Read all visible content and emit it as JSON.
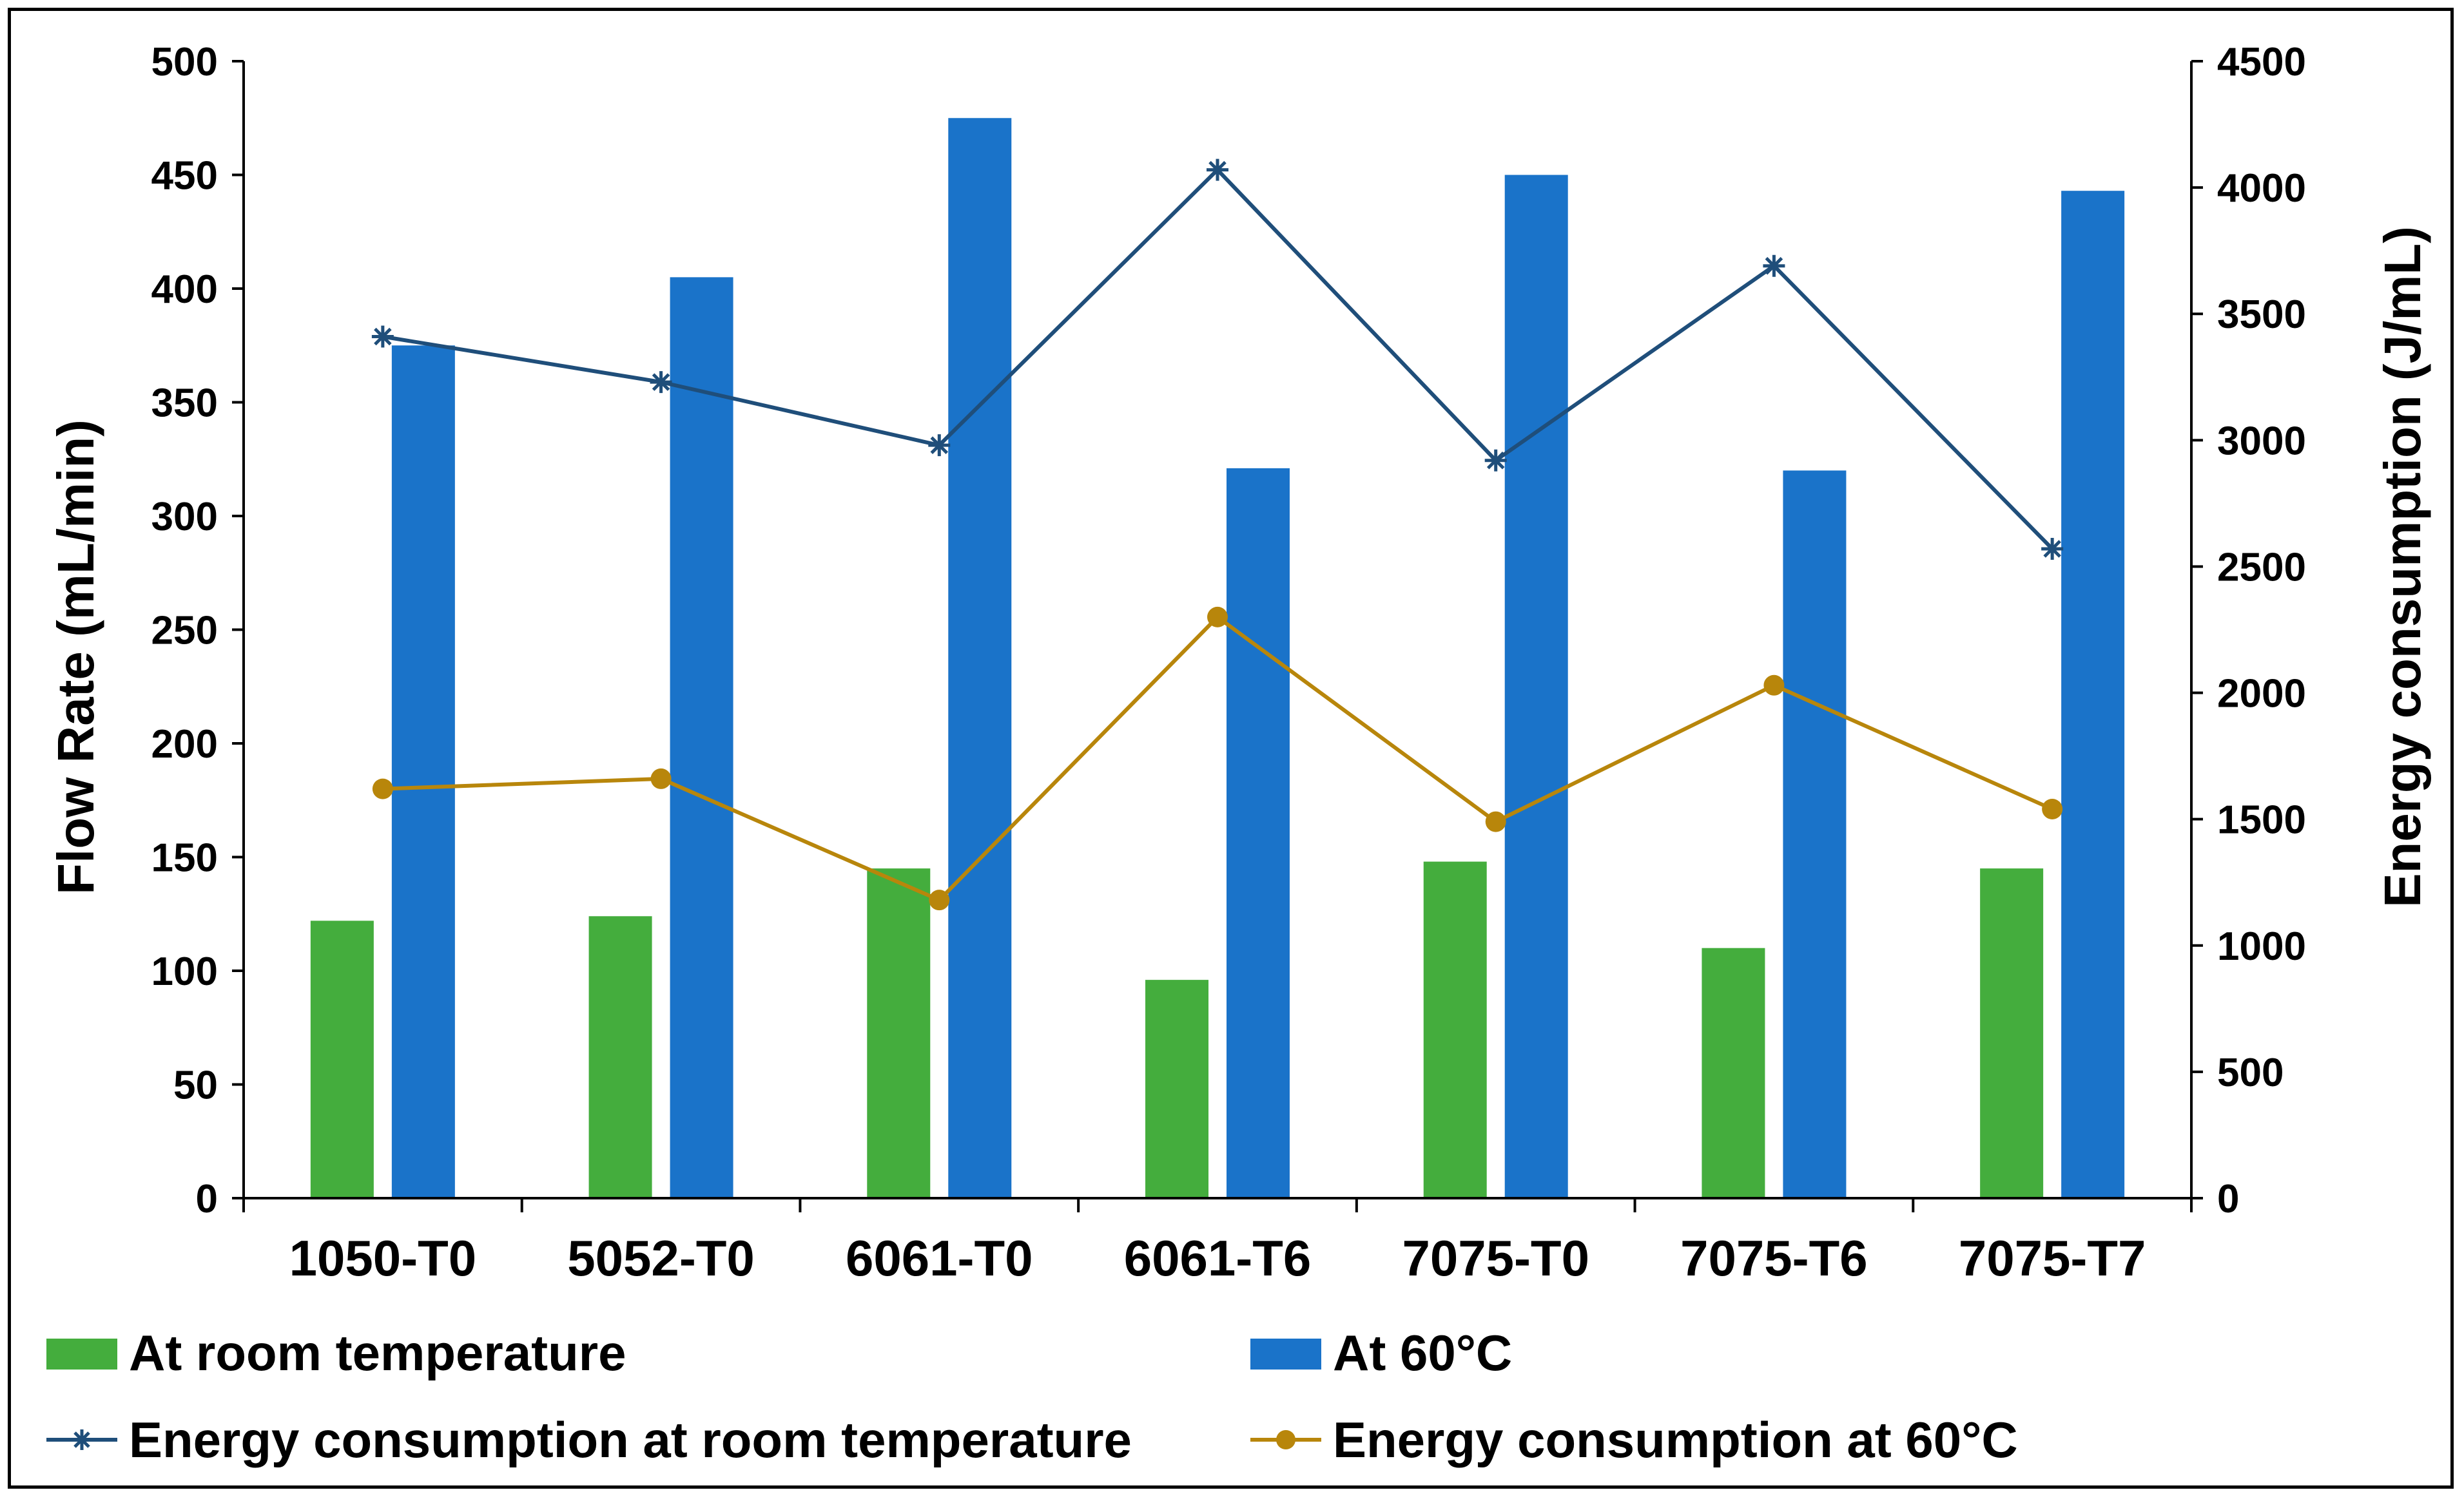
{
  "chart_data": {
    "type": "bar+line",
    "categories": [
      "1050-T0",
      "5052-T0",
      "6061-T0",
      "6061-T6",
      "7075-T0",
      "7075-T6",
      "7075-T7"
    ],
    "bar_series": [
      {
        "name": "At room temperature",
        "axis": "left",
        "color": "#44ad3d",
        "values": [
          122,
          124,
          145,
          96,
          148,
          110,
          145
        ]
      },
      {
        "name": "At 60°C",
        "axis": "left",
        "color": "#1a73c9",
        "values": [
          375,
          405,
          475,
          321,
          450,
          320,
          443
        ]
      }
    ],
    "line_series": [
      {
        "name": "Energy consumption at room temperature",
        "axis": "right",
        "color": "#1f4e7a",
        "marker": "star",
        "values": [
          3410,
          3230,
          2980,
          4070,
          2920,
          3690,
          2570
        ]
      },
      {
        "name": "Energy consumption at 60°C",
        "axis": "right",
        "color": "#b8860b",
        "marker": "circle",
        "values": [
          1620,
          1660,
          1180,
          2300,
          1490,
          2030,
          1540
        ]
      }
    ],
    "ylabel": "Flow Rate (mL/min)",
    "y2label": "Energy consumption (J/mL)",
    "ylim": [
      0,
      500
    ],
    "y2lim": [
      0,
      4500
    ],
    "yticks": [
      "0",
      "50",
      "100",
      "150",
      "200",
      "250",
      "300",
      "350",
      "400",
      "450",
      "500"
    ],
    "y2ticks": [
      "0",
      "500",
      "1000",
      "1500",
      "2000",
      "2500",
      "3000",
      "3500",
      "4000",
      "4500"
    ],
    "grid": false,
    "legend_position": "bottom"
  }
}
